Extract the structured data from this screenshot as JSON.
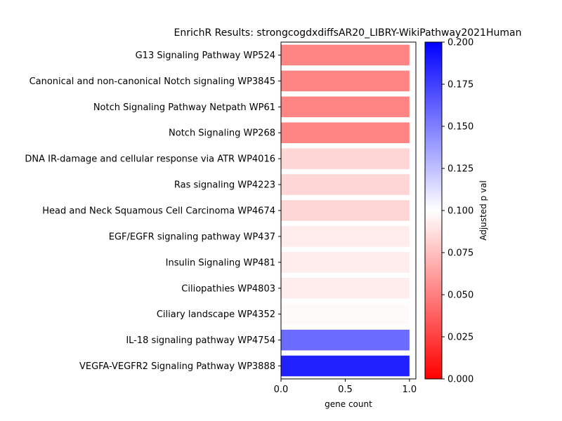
{
  "chart_data": {
    "type": "bar",
    "orientation": "horizontal",
    "title": "EnrichR Results: strongcogdxdiffsAR20_LIBRY-WikiPathway2021Human",
    "xlabel": "gene count",
    "ylabel": "",
    "xlim": [
      0,
      1.05
    ],
    "xticks": [
      "0.0",
      "0.5",
      "1.0"
    ],
    "categories": [
      "G13 Signaling Pathway WP524",
      "Canonical and non-canonical Notch signaling WP3845",
      "Notch Signaling Pathway Netpath WP61",
      "Notch Signaling WP268",
      "DNA IR-damage and cellular response via ATR WP4016",
      "Ras signaling WP4223",
      "Head and Neck Squamous Cell Carcinoma WP4674",
      "EGF/EGFR signaling pathway WP437",
      "Insulin Signaling WP481",
      "Ciliopathies WP4803",
      "Ciliary landscape WP4352",
      "IL-18 signaling pathway WP4754",
      "VEGFA-VEGFR2 Signaling Pathway WP3888"
    ],
    "values": [
      1,
      1,
      1,
      1,
      1,
      1,
      1,
      1,
      1,
      1,
      1,
      1,
      1
    ],
    "adjusted_p_values": [
      0.052,
      0.052,
      0.052,
      0.052,
      0.084,
      0.084,
      0.084,
      0.093,
      0.093,
      0.093,
      0.098,
      0.158,
      0.187
    ],
    "colorbar": {
      "label": "Adjusted p val",
      "range": [
        0,
        0.2
      ],
      "ticks": [
        "0.000",
        "0.025",
        "0.050",
        "0.075",
        "0.100",
        "0.125",
        "0.150",
        "0.175",
        "0.200"
      ],
      "colors": {
        "low": "#ff0000",
        "mid": "#ffffff",
        "high": "#0000ff"
      }
    }
  }
}
